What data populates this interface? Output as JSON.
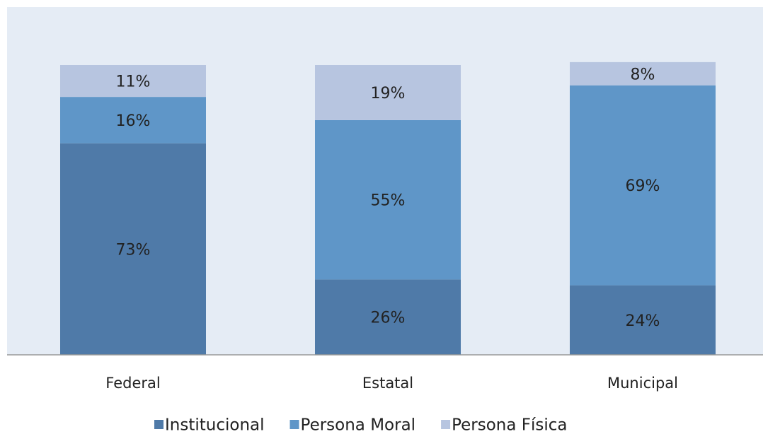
{
  "chart_data": {
    "type": "stacked-bar",
    "categories": [
      "Federal",
      "Estatal",
      "Municipal"
    ],
    "series": [
      {
        "name": "Institucional",
        "color": "#4f7aa8",
        "values": [
          73,
          26,
          24
        ],
        "value_labels": [
          "73%",
          "26%",
          "24%"
        ]
      },
      {
        "name": "Persona Moral",
        "color": "#5f96c8",
        "values": [
          16,
          55,
          69
        ],
        "value_labels": [
          "16%",
          "55%",
          "69%"
        ]
      },
      {
        "name": "Persona Física",
        "color": "#b7c5e0",
        "values": [
          11,
          19,
          8
        ],
        "value_labels": [
          "11%",
          "19%",
          "8%"
        ]
      }
    ],
    "ylim": [
      0,
      120
    ],
    "legend": "bottom"
  }
}
